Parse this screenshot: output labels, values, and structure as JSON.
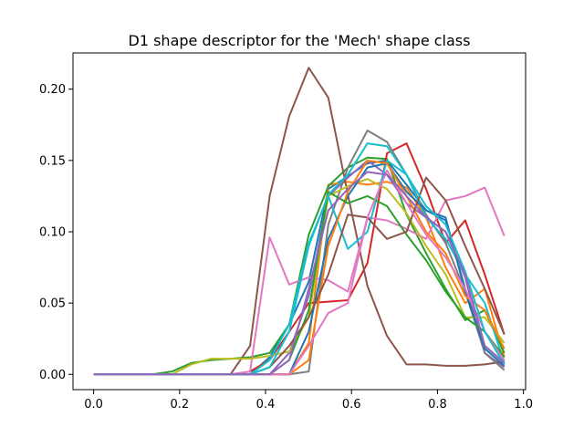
{
  "chart_data": {
    "type": "line",
    "title": "D1 shape descriptor for the 'Mech' shape class",
    "xlabel": "",
    "ylabel": "",
    "xlim": [
      -0.048,
      1.005
    ],
    "ylim": [
      -0.0107,
      0.2254
    ],
    "xticks": [
      0.0,
      0.2,
      0.4,
      0.6,
      0.8,
      1.0
    ],
    "xtick_labels": [
      "0.0",
      "0.2",
      "0.4",
      "0.6",
      "0.8",
      "1.0"
    ],
    "yticks": [
      0.0,
      0.05,
      0.1,
      0.15,
      0.2
    ],
    "ytick_labels": [
      "0.00",
      "0.05",
      "0.10",
      "0.15",
      "0.20"
    ],
    "grid": false,
    "legend": "none",
    "x": [
      0.0,
      0.0455,
      0.091,
      0.1365,
      0.182,
      0.2275,
      0.273,
      0.3185,
      0.364,
      0.4095,
      0.455,
      0.5005,
      0.546,
      0.5915,
      0.637,
      0.6825,
      0.728,
      0.7735,
      0.819,
      0.8645,
      0.91,
      0.9555
    ],
    "series": [
      {
        "color": "#1f77b4",
        "values": [
          0,
          0,
          0,
          0,
          0,
          0,
          0,
          0,
          0,
          0.012,
          0.035,
          0.065,
          0.13,
          0.139,
          0.148,
          0.15,
          0.133,
          0.115,
          0.108,
          0.06,
          0.02,
          0.008
        ]
      },
      {
        "color": "#ff7f0e",
        "values": [
          0,
          0,
          0,
          0,
          0,
          0,
          0,
          0,
          0,
          0,
          0,
          0.022,
          0.133,
          0.135,
          0.133,
          0.135,
          0.131,
          0.11,
          0.075,
          0.05,
          0.06,
          0.012
        ]
      },
      {
        "color": "#2ca02c",
        "values": [
          0,
          0,
          0,
          0,
          0.002,
          0.008,
          0.01,
          0.011,
          0.012,
          0.015,
          0.035,
          0.098,
          0.132,
          0.145,
          0.152,
          0.151,
          0.112,
          0.085,
          0.06,
          0.038,
          0.045,
          0.015
        ]
      },
      {
        "color": "#d62728",
        "values": [
          0,
          0,
          0,
          0,
          0,
          0,
          0,
          0,
          0.002,
          0.01,
          0.03,
          0.05,
          0.051,
          0.052,
          0.078,
          0.155,
          0.162,
          0.13,
          0.092,
          0.108,
          0.07,
          0.028
        ]
      },
      {
        "color": "#9467bd",
        "values": [
          0,
          0,
          0,
          0,
          0,
          0,
          0,
          0,
          0,
          0,
          0.015,
          0.055,
          0.125,
          0.138,
          0.15,
          0.14,
          0.12,
          0.11,
          0.1,
          0.068,
          0.015,
          0.005
        ]
      },
      {
        "color": "#8c564b",
        "values": [
          0,
          0,
          0,
          0,
          0,
          0,
          0,
          0,
          0.02,
          0.125,
          0.181,
          0.215,
          0.194,
          0.126,
          0.062,
          0.027,
          0.007,
          0.007,
          0.006,
          0.006,
          0.007,
          0.009
        ]
      },
      {
        "color": "#e377c2",
        "values": [
          0,
          0,
          0,
          0,
          0,
          0,
          0,
          0,
          0.002,
          0.096,
          0.063,
          0.068,
          0.066,
          0.058,
          0.11,
          0.108,
          0.102,
          0.095,
          0.122,
          0.125,
          0.131,
          0.097
        ]
      },
      {
        "color": "#7f7f7f",
        "values": [
          0,
          0,
          0,
          0,
          0,
          0,
          0,
          0,
          0,
          0,
          0,
          0.002,
          0.105,
          0.145,
          0.171,
          0.163,
          0.14,
          0.112,
          0.092,
          0.058,
          0.015,
          0.003
        ]
      },
      {
        "color": "#bcbd22",
        "values": [
          0,
          0,
          0,
          0,
          0,
          0.007,
          0.011,
          0.011,
          0.011,
          0.013,
          0.016,
          0.04,
          0.125,
          0.132,
          0.137,
          0.13,
          0.113,
          0.09,
          0.07,
          0.04,
          0.04,
          0.022
        ]
      },
      {
        "color": "#17becf",
        "values": [
          0,
          0,
          0,
          0,
          0,
          0,
          0,
          0,
          0,
          0.01,
          0.035,
          0.092,
          0.125,
          0.088,
          0.1,
          0.15,
          0.14,
          0.11,
          0.095,
          0.07,
          0.05,
          0.008
        ]
      },
      {
        "color": "#1f77b4",
        "values": [
          0,
          0,
          0,
          0,
          0,
          0,
          0,
          0,
          0,
          0,
          0,
          0.03,
          0.095,
          0.125,
          0.145,
          0.148,
          0.128,
          0.115,
          0.11,
          0.058,
          0.018,
          0.006
        ]
      },
      {
        "color": "#ff7f0e",
        "values": [
          0,
          0,
          0,
          0,
          0,
          0,
          0,
          0,
          0,
          0,
          0,
          0.01,
          0.09,
          0.128,
          0.15,
          0.148,
          0.125,
          0.1,
          0.085,
          0.055,
          0.045,
          0.018
        ]
      },
      {
        "color": "#2ca02c",
        "values": [
          0,
          0,
          0,
          0,
          0,
          0,
          0,
          0,
          0,
          0,
          0.01,
          0.045,
          0.128,
          0.12,
          0.125,
          0.118,
          0.098,
          0.08,
          0.058,
          0.04,
          0.03,
          0.012
        ]
      },
      {
        "color": "#8c564b",
        "values": [
          0,
          0,
          0,
          0,
          0,
          0,
          0,
          0,
          0,
          0.005,
          0.02,
          0.04,
          0.07,
          0.112,
          0.11,
          0.095,
          0.1,
          0.138,
          0.122,
          0.09,
          0.06,
          0.028
        ]
      },
      {
        "color": "#e377c2",
        "values": [
          0,
          0,
          0,
          0,
          0,
          0,
          0,
          0,
          0,
          0,
          0,
          0.02,
          0.043,
          0.05,
          0.11,
          0.143,
          0.12,
          0.098,
          0.082,
          0.06,
          0.03,
          0.01
        ]
      },
      {
        "color": "#17becf",
        "values": [
          0,
          0,
          0,
          0,
          0,
          0,
          0,
          0,
          0,
          0.005,
          0.03,
          0.09,
          0.126,
          0.14,
          0.162,
          0.16,
          0.14,
          0.118,
          0.105,
          0.072,
          0.03,
          0.007
        ]
      },
      {
        "color": "#9467bd",
        "values": [
          0,
          0,
          0,
          0,
          0,
          0,
          0,
          0,
          0,
          0,
          0.01,
          0.06,
          0.115,
          0.13,
          0.142,
          0.14,
          0.125,
          0.11,
          0.1,
          0.07,
          0.02,
          0.008
        ]
      }
    ]
  }
}
